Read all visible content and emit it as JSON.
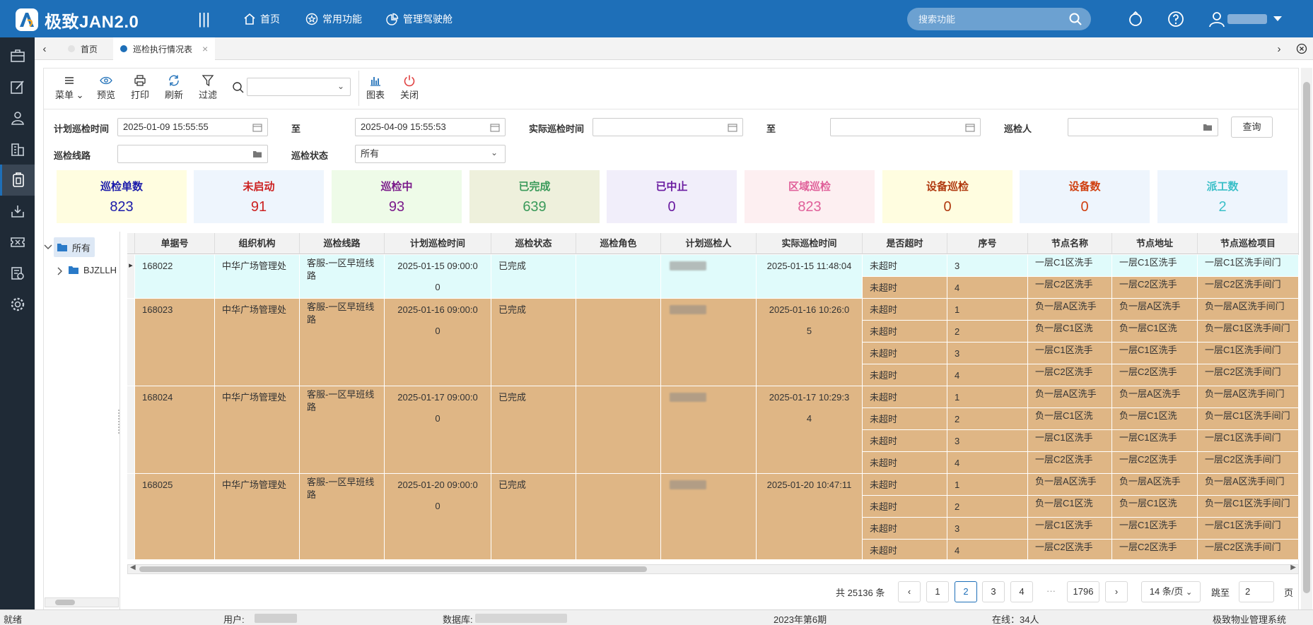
{
  "header": {
    "app_title": "极致JAN2.0",
    "nav": [
      {
        "label": "首页",
        "icon": "home-icon"
      },
      {
        "label": "常用功能",
        "icon": "star-icon"
      },
      {
        "label": "管理驾驶舱",
        "icon": "chart-pie-icon"
      }
    ],
    "search_placeholder": "搜索功能"
  },
  "tabs": [
    {
      "label": "首页",
      "active": false
    },
    {
      "label": "巡检执行情况表",
      "active": true
    }
  ],
  "toolbar": {
    "menu": "菜单",
    "preview": "预览",
    "print": "打印",
    "refresh": "刷新",
    "filter": "过滤",
    "chart": "图表",
    "close": "关闭"
  },
  "filters": {
    "plan_time_label": "计划巡检时间",
    "plan_time_from": "2025-01-09 15:55:55",
    "to_label": "至",
    "plan_time_to": "2025-04-09 15:55:53",
    "actual_time_label": "实际巡检时间",
    "actual_time_from": "",
    "actual_time_to": "",
    "inspector_label": "巡检人",
    "inspector": "",
    "query": "查询",
    "route_label": "巡检线路",
    "route": "",
    "status_label": "巡检状态",
    "status": "所有"
  },
  "cards": [
    {
      "title": "巡检单数",
      "value": "823",
      "bg": "#fffde0",
      "color": "#1a1aaa"
    },
    {
      "title": "未启动",
      "value": "91",
      "bg": "#eef5fd",
      "color": "#cc2222"
    },
    {
      "title": "巡检中",
      "value": "93",
      "bg": "#eefbe8",
      "color": "#7a1a8a"
    },
    {
      "title": "已完成",
      "value": "639",
      "bg": "#eef0dc",
      "color": "#3a9a5a"
    },
    {
      "title": "已中止",
      "value": "0",
      "bg": "#f1eefa",
      "color": "#6a1aa0"
    },
    {
      "title": "区域巡检",
      "value": "823",
      "bg": "#fdeff1",
      "color": "#e0609a"
    },
    {
      "title": "设备巡检",
      "value": "0",
      "bg": "#fffde0",
      "color": "#b03a10"
    },
    {
      "title": "设备数",
      "value": "0",
      "bg": "#eef5fd",
      "color": "#d04010"
    },
    {
      "title": "派工数",
      "value": "2",
      "bg": "#eef5fd",
      "color": "#3abfc8"
    }
  ],
  "tree": {
    "root": "所有",
    "child": "BJZLLH"
  },
  "table": {
    "columns": [
      "单据号",
      "组织机构",
      "巡检线路",
      "计划巡检时间",
      "巡检状态",
      "巡检角色",
      "计划巡检人",
      "实际巡检时间",
      "是否超时",
      "序号",
      "节点名称",
      "节点地址",
      "节点巡检项目"
    ],
    "records": [
      {
        "id": "168022",
        "org": "中华广场管理处",
        "route": "客服-一区早班线路",
        "plan_time_a": "2025-01-15 09:00:0",
        "plan_time_b": "0",
        "status": "已完成",
        "actual_time_a": "2025-01-15 11:48:04",
        "actual_time_b": "",
        "selected": true,
        "nodes": [
          {
            "overtime": "未超时",
            "seq": "3",
            "name": "一层C1区洗手",
            "addr": "一层C1区洗手",
            "item": "一层C1区洗手间门"
          },
          {
            "overtime": "未超时",
            "seq": "4",
            "name": "一层C2区洗手",
            "addr": "一层C2区洗手",
            "item": "一层C2区洗手间门"
          }
        ]
      },
      {
        "id": "168023",
        "org": "中华广场管理处",
        "route": "客服-一区早班线路",
        "plan_time_a": "2025-01-16 09:00:0",
        "plan_time_b": "0",
        "status": "已完成",
        "actual_time_a": "2025-01-16 10:26:0",
        "actual_time_b": "5",
        "selected": false,
        "nodes": [
          {
            "overtime": "未超时",
            "seq": "1",
            "name": "负一层A区洗手",
            "addr": "负一层A区洗手",
            "item": "负一层A区洗手间门"
          },
          {
            "overtime": "未超时",
            "seq": "2",
            "name": "负一层C1区洗",
            "addr": "负一层C1区洗",
            "item": "负一层C1区洗手间门"
          },
          {
            "overtime": "未超时",
            "seq": "3",
            "name": "一层C1区洗手",
            "addr": "一层C1区洗手",
            "item": "一层C1区洗手间门"
          },
          {
            "overtime": "未超时",
            "seq": "4",
            "name": "一层C2区洗手",
            "addr": "一层C2区洗手",
            "item": "一层C2区洗手间门"
          }
        ]
      },
      {
        "id": "168024",
        "org": "中华广场管理处",
        "route": "客服-一区早班线路",
        "plan_time_a": "2025-01-17 09:00:0",
        "plan_time_b": "0",
        "status": "已完成",
        "actual_time_a": "2025-01-17 10:29:3",
        "actual_time_b": "4",
        "selected": false,
        "nodes": [
          {
            "overtime": "未超时",
            "seq": "1",
            "name": "负一层A区洗手",
            "addr": "负一层A区洗手",
            "item": "负一层A区洗手间门"
          },
          {
            "overtime": "未超时",
            "seq": "2",
            "name": "负一层C1区洗",
            "addr": "负一层C1区洗",
            "item": "负一层C1区洗手间门"
          },
          {
            "overtime": "未超时",
            "seq": "3",
            "name": "一层C1区洗手",
            "addr": "一层C1区洗手",
            "item": "一层C1区洗手间门"
          },
          {
            "overtime": "未超时",
            "seq": "4",
            "name": "一层C2区洗手",
            "addr": "一层C2区洗手",
            "item": "一层C2区洗手间门"
          }
        ]
      },
      {
        "id": "168025",
        "org": "中华广场管理处",
        "route": "客服-一区早班线路",
        "plan_time_a": "2025-01-20 09:00:0",
        "plan_time_b": "0",
        "status": "已完成",
        "actual_time_a": "2025-01-20 10:47:11",
        "actual_time_b": "",
        "selected": false,
        "nodes": [
          {
            "overtime": "未超时",
            "seq": "1",
            "name": "负一层A区洗手",
            "addr": "负一层A区洗手",
            "item": "负一层A区洗手间门"
          },
          {
            "overtime": "未超时",
            "seq": "2",
            "name": "负一层C1区洗",
            "addr": "负一层C1区洗",
            "item": "负一层C1区洗手间门"
          },
          {
            "overtime": "未超时",
            "seq": "3",
            "name": "一层C1区洗手",
            "addr": "一层C1区洗手",
            "item": "一层C1区洗手间门"
          },
          {
            "overtime": "未超时",
            "seq": "4",
            "name": "一层C2区洗手",
            "addr": "一层C2区洗手",
            "item": "一层C2区洗手间门"
          }
        ]
      }
    ],
    "row_colors": {
      "selected": "#e0fbfb",
      "normal": "#dfb685"
    }
  },
  "pagination": {
    "total": "共 25136 条",
    "pages": [
      "1",
      "2",
      "3",
      "4"
    ],
    "current": "2",
    "ellipsis": "···",
    "last": "1796",
    "page_size": "14 条/页",
    "jump_label": "跳至",
    "jump_value": "2",
    "page_unit": "页"
  },
  "status": {
    "ready": "就绪",
    "user_label": "用户:",
    "db_label": "数据库:",
    "period": "2023年第6期",
    "online": "在线：34人",
    "system": "极致物业管理系统"
  }
}
